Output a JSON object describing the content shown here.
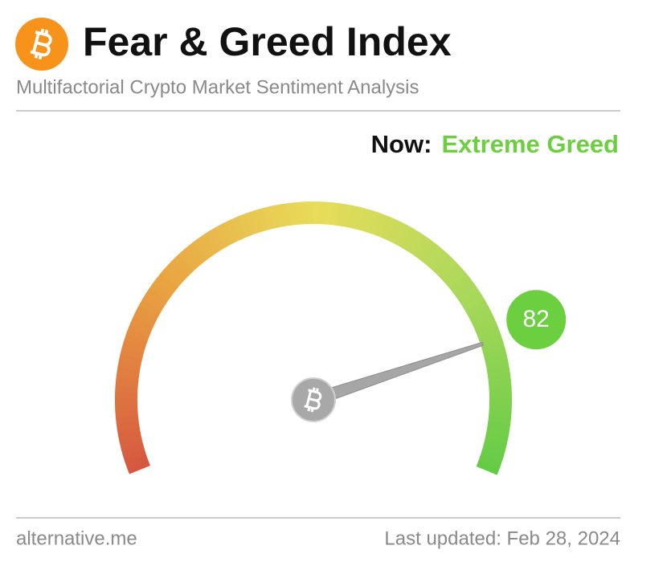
{
  "chart_data": {
    "type": "gauge",
    "title": "Fear & Greed Index",
    "subtitle": "Multifactorial Crypto Market Sentiment Analysis",
    "status_prefix": "Now:",
    "status": "Extreme Greed",
    "value": 82,
    "ylim": [
      0,
      100
    ],
    "color": "#6ccf3f",
    "source": "alternative.me",
    "updated": "Last updated: Feb 28, 2024"
  }
}
